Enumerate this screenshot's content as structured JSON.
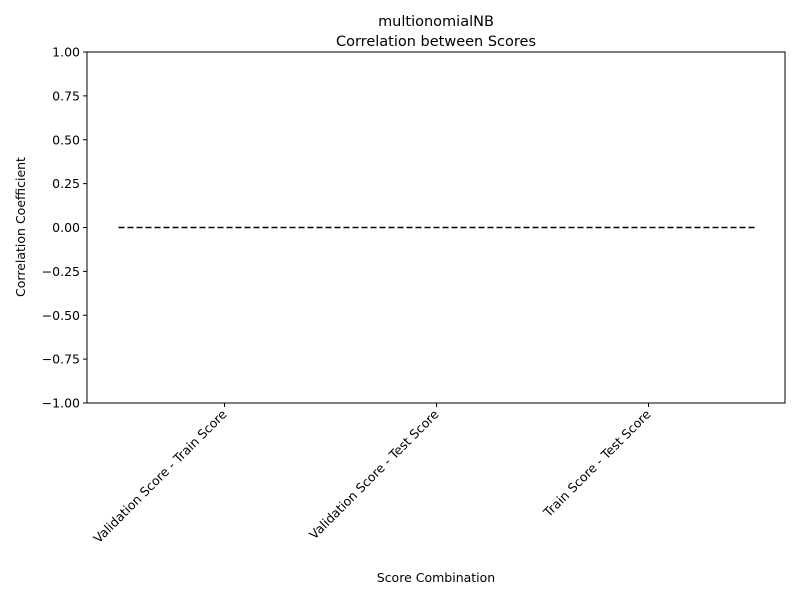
{
  "chart_data": {
    "type": "bar",
    "title": "multionomialNB",
    "subtitle": "Correlation between Scores",
    "xlabel": "Score Combination",
    "ylabel": "Correlation Coefficient",
    "categories": [
      "Validation Score - Train Score",
      "Validation Score - Test Score",
      "Train Score - Test Score"
    ],
    "values": [
      0,
      0,
      0
    ],
    "ylim": [
      -1,
      1
    ],
    "yticks": [
      -1.0,
      -0.75,
      -0.5,
      -0.25,
      0.0,
      0.25,
      0.5,
      0.75,
      1.0
    ],
    "ytick_labels": [
      "−1.00",
      "−0.75",
      "−0.50",
      "−0.25",
      "0.00",
      "0.25",
      "0.50",
      "0.75",
      "1.00"
    ],
    "reference_line": {
      "y": 0,
      "style": "dashed",
      "color": "#000000"
    },
    "grid": false,
    "legend": "none"
  }
}
